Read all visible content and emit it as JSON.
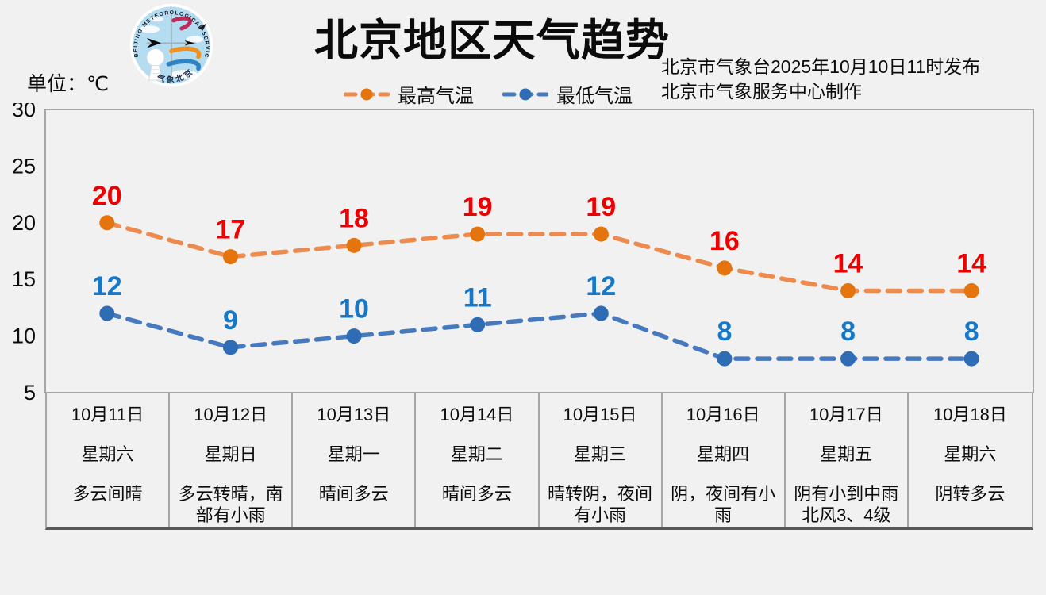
{
  "header": {
    "title": "北京地区天气趋势",
    "unit_label": "单位：℃",
    "issued_line1": "北京市气象台2025年10月10日11时发布",
    "issued_line2": "北京市气象服务中心制作",
    "logo": {
      "ring_text": "BEIJING METEOROLOGICAL SERVICE",
      "bottom_text": "气象北京"
    }
  },
  "colors": {
    "background": "#f1f1f1",
    "plot_border": "#a6a6a6",
    "table_bottom_line": "#595959",
    "high_label": "#ee0000",
    "low_label": "#1578c8",
    "high_line": "#ED8A4E",
    "high_marker": "#E4750E",
    "low_line": "#4679BD",
    "low_marker": "#2E6CB5"
  },
  "legend": {
    "items": [
      {
        "label": "最高气温"
      },
      {
        "label": "最低气温"
      }
    ]
  },
  "chart_data": {
    "type": "line",
    "title": "北京地区天气趋势",
    "ylabel": "℃",
    "ylim": [
      5,
      30
    ],
    "yticks": [
      30,
      25,
      20,
      15,
      10,
      5
    ],
    "grid": false,
    "legend_position": "top",
    "line_style": "dashed",
    "categories": [
      "10月11日",
      "10月12日",
      "10月13日",
      "10月14日",
      "10月15日",
      "10月16日",
      "10月17日",
      "10月18日"
    ],
    "series": [
      {
        "name": "最高气温",
        "values": [
          20,
          17,
          18,
          19,
          19,
          16,
          14,
          14
        ],
        "line_color": "#ED8A4E",
        "marker_color": "#E4750E",
        "label_color": "#ee0000"
      },
      {
        "name": "最低气温",
        "values": [
          12,
          9,
          10,
          11,
          12,
          8,
          8,
          8
        ],
        "line_color": "#4679BD",
        "marker_color": "#2E6CB5",
        "label_color": "#1578c8"
      }
    ]
  },
  "table": {
    "columns": [
      {
        "date": "10月11日",
        "weekday": "星期六",
        "weather": "多云间晴"
      },
      {
        "date": "10月12日",
        "weekday": "星期日",
        "weather": "多云转晴，南\n部有小雨"
      },
      {
        "date": "10月13日",
        "weekday": "星期一",
        "weather": "晴间多云"
      },
      {
        "date": "10月14日",
        "weekday": "星期二",
        "weather": "晴间多云"
      },
      {
        "date": "10月15日",
        "weekday": "星期三",
        "weather": "晴转阴，夜间\n有小雨"
      },
      {
        "date": "10月16日",
        "weekday": "星期四",
        "weather": "阴，夜间有小\n雨"
      },
      {
        "date": "10月17日",
        "weekday": "星期五",
        "weather": "阴有小到中雨\n北风3、4级"
      },
      {
        "date": "10月18日",
        "weekday": "星期六",
        "weather": "阴转多云"
      }
    ]
  }
}
